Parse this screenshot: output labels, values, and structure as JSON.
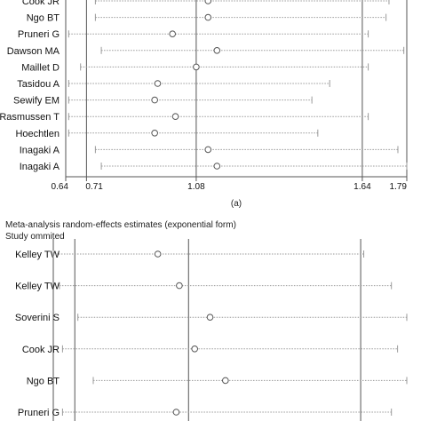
{
  "colors": {
    "ci": "#9a9a9a",
    "ref": "#555555",
    "point": "#555555",
    "text": "#111111"
  },
  "chart_data": [
    {
      "type": "forest",
      "title": "",
      "subtitle": "",
      "caption": "(a)",
      "xlim": [
        0.64,
        1.79
      ],
      "ticks": [
        {
          "value": 0.64,
          "label": "0.64"
        },
        {
          "value": 0.71,
          "label": "0.71"
        },
        {
          "value": 1.08,
          "label": "1.08"
        },
        {
          "value": 1.64,
          "label": "1.64"
        },
        {
          "value": 1.79,
          "label": "1.79"
        }
      ],
      "ref_lines": [
        0.71,
        1.08,
        1.64
      ],
      "studies": [
        {
          "label": "Cook JR",
          "est": 1.12,
          "lo": 0.74,
          "hi": 1.73
        },
        {
          "label": "Ngo BT",
          "est": 1.12,
          "lo": 0.74,
          "hi": 1.72
        },
        {
          "label": "Pruneri G",
          "est": 1.0,
          "lo": 0.65,
          "hi": 1.66
        },
        {
          "label": "Dawson MA",
          "est": 1.15,
          "lo": 0.76,
          "hi": 1.78
        },
        {
          "label": "Maillet D",
          "est": 1.08,
          "lo": 0.69,
          "hi": 1.66
        },
        {
          "label": "Tasidou A",
          "est": 0.95,
          "lo": 0.65,
          "hi": 1.53
        },
        {
          "label": "Sewify EM",
          "est": 0.94,
          "lo": 0.65,
          "hi": 1.47
        },
        {
          "label": "Rasmussen T",
          "est": 1.01,
          "lo": 0.65,
          "hi": 1.66
        },
        {
          "label": "Hoechtlen",
          "est": 0.94,
          "lo": 0.65,
          "hi": 1.49
        },
        {
          "label": "Inagaki A",
          "est": 1.12,
          "lo": 0.74,
          "hi": 1.76
        },
        {
          "label": "Inagaki A",
          "est": 1.15,
          "lo": 0.76,
          "hi": 1.79
        }
      ]
    },
    {
      "type": "forest",
      "title": "Meta-analysis random-effects estimates (exponential form)",
      "subtitle": "Study ommited",
      "caption": "",
      "xlim": [
        0.64,
        1.79
      ],
      "ticks": [],
      "ref_lines": [
        0.71,
        1.08,
        1.64
      ],
      "studies": [
        {
          "label": "Kelley TW",
          "est": 0.98,
          "lo": 0.64,
          "hi": 1.65
        },
        {
          "label": "Kelley TW",
          "est": 1.05,
          "lo": 0.66,
          "hi": 1.74
        },
        {
          "label": "Soverini S",
          "est": 1.15,
          "lo": 0.72,
          "hi": 1.79
        },
        {
          "label": "Cook JR",
          "est": 1.1,
          "lo": 0.67,
          "hi": 1.76
        },
        {
          "label": "Ngo BT",
          "est": 1.2,
          "lo": 0.77,
          "hi": 1.79
        },
        {
          "label": "Pruneri G",
          "est": 1.04,
          "lo": 0.67,
          "hi": 1.74
        }
      ]
    }
  ]
}
